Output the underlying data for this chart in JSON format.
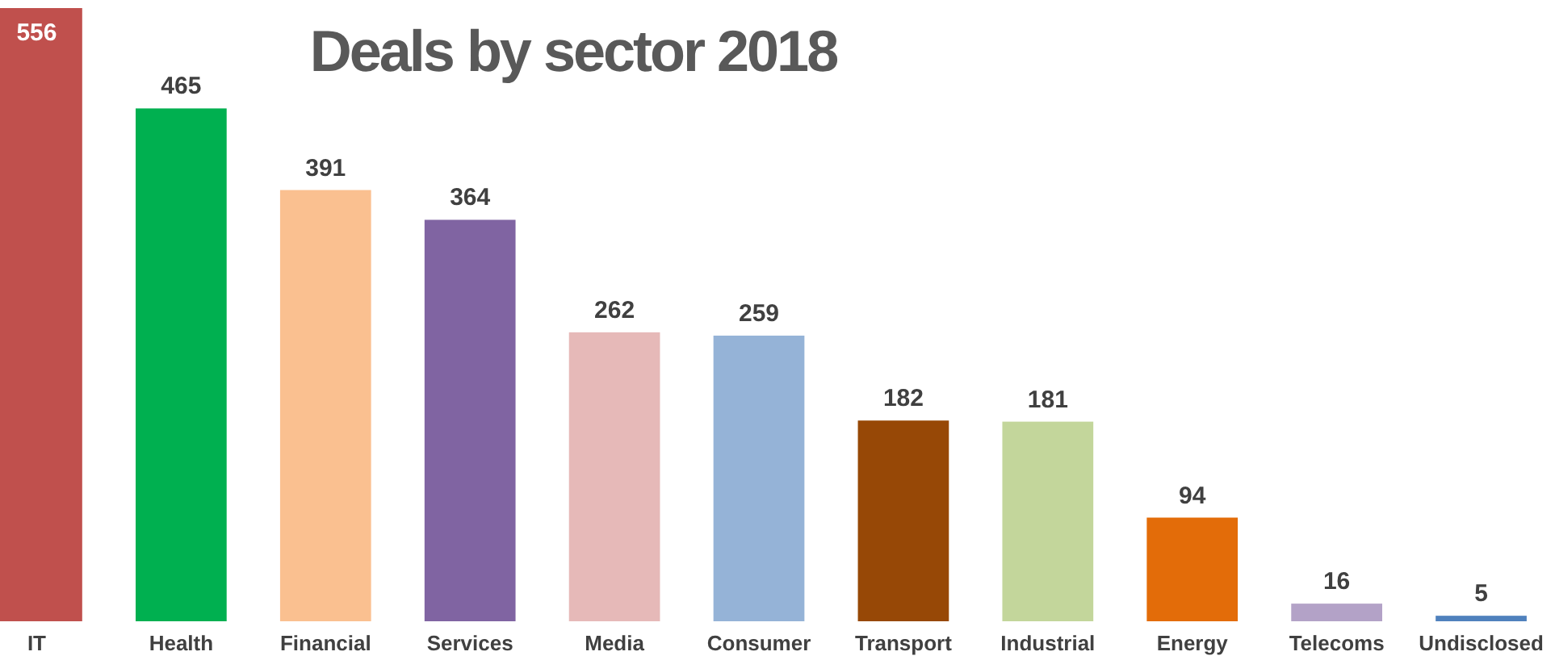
{
  "chart_data": {
    "type": "bar",
    "title": "Deals by sector 2018",
    "categories": [
      "IT",
      "Health",
      "Financial",
      "Services",
      "Media",
      "Consumer",
      "Transport",
      "Industrial",
      "Energy",
      "Telecoms",
      "Undisclosed"
    ],
    "values": [
      556,
      465,
      391,
      364,
      262,
      259,
      182,
      181,
      94,
      16,
      5
    ],
    "colors": [
      "#c0504d",
      "#00b050",
      "#fac090",
      "#8064a2",
      "#e6b9b8",
      "#95b3d7",
      "#974806",
      "#c3d69b",
      "#e36c09",
      "#b3a2c7",
      "#4f81bd"
    ],
    "data_labels": true
  }
}
